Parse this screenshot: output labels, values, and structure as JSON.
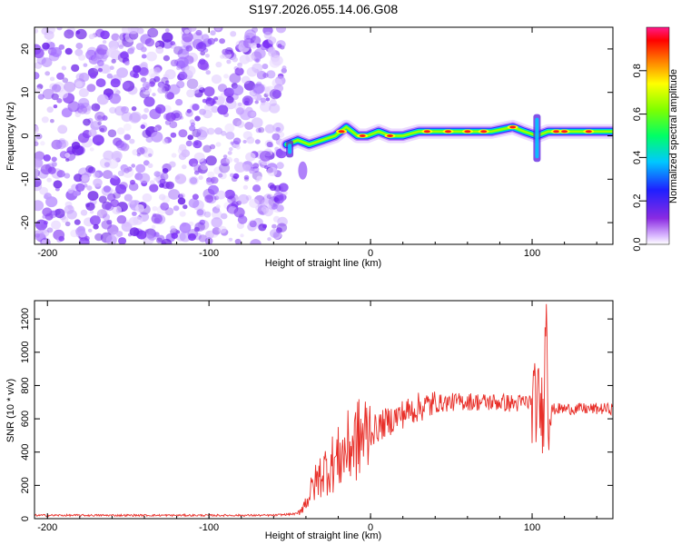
{
  "title": "S197.2026.055.14.06.G08",
  "colors": {
    "snr_line": "#e8302a",
    "noise_purple": "#7b2ff7",
    "frame": "#000000"
  },
  "chart_data": [
    {
      "type": "heatmap",
      "xlabel": "Height of straight line (km)",
      "ylabel": "Frequency (Hz)",
      "xlim": [
        -208,
        150
      ],
      "ylim": [
        -25,
        25
      ],
      "xticks": [
        -200,
        -100,
        0,
        100
      ],
      "xtick_labels": [
        "-200",
        "-100",
        "0",
        "100"
      ],
      "yticks": [
        -20,
        -10,
        0,
        10,
        20
      ],
      "ytick_labels": [
        "-20",
        "-10",
        "0",
        "10",
        "20"
      ],
      "noise_region_x": [
        -208,
        -53
      ],
      "signal_track": {
        "x": [
          -52,
          -45,
          -38,
          -30,
          -22,
          -15,
          -8,
          -2,
          5,
          12,
          20,
          30,
          45,
          60,
          75,
          88,
          95,
          103,
          110,
          125,
          140,
          150
        ],
        "freq_hz": [
          -2,
          -1,
          -2,
          -1,
          0,
          2,
          0,
          0,
          1,
          0,
          0,
          1,
          1,
          1,
          1,
          2,
          1,
          0,
          1,
          1,
          1,
          1
        ]
      },
      "colorbar": {
        "label": "Normalized spectral amplitude",
        "range": [
          0,
          1
        ],
        "ticks": [
          0.0,
          0.2,
          0.4,
          0.6,
          0.8
        ],
        "tick_labels": [
          "0.0",
          "0.2",
          "0.4",
          "0.6",
          "0.8"
        ]
      }
    },
    {
      "type": "line",
      "xlabel": "Height of straight line (km)",
      "ylabel": "SNR (10 * v/v)",
      "xlim": [
        -208,
        150
      ],
      "ylim": [
        0,
        1310
      ],
      "xticks": [
        -200,
        -100,
        0,
        100
      ],
      "xtick_labels": [
        "-200",
        "-100",
        "0",
        "100"
      ],
      "yticks": [
        0,
        200,
        400,
        600,
        800,
        1000,
        1200
      ],
      "ytick_labels": [
        "0",
        "200",
        "400",
        "600",
        "800",
        "1000",
        "1200"
      ],
      "series": [
        {
          "name": "SNR",
          "x": [
            -208,
            -150,
            -100,
            -60,
            -45,
            -40,
            -35,
            -30,
            -25,
            -20,
            -15,
            -10,
            -5,
            0,
            10,
            20,
            30,
            40,
            50,
            60,
            70,
            80,
            90,
            95,
            100,
            105,
            107,
            108,
            109,
            110,
            115,
            120,
            130,
            140,
            150
          ],
          "y": [
            20,
            20,
            20,
            20,
            30,
            100,
            200,
            280,
            320,
            360,
            410,
            460,
            490,
            520,
            580,
            630,
            670,
            690,
            700,
            705,
            700,
            700,
            690,
            700,
            700,
            680,
            600,
            1000,
            1280,
            650,
            660,
            660,
            660,
            660,
            660
          ]
        }
      ]
    }
  ]
}
